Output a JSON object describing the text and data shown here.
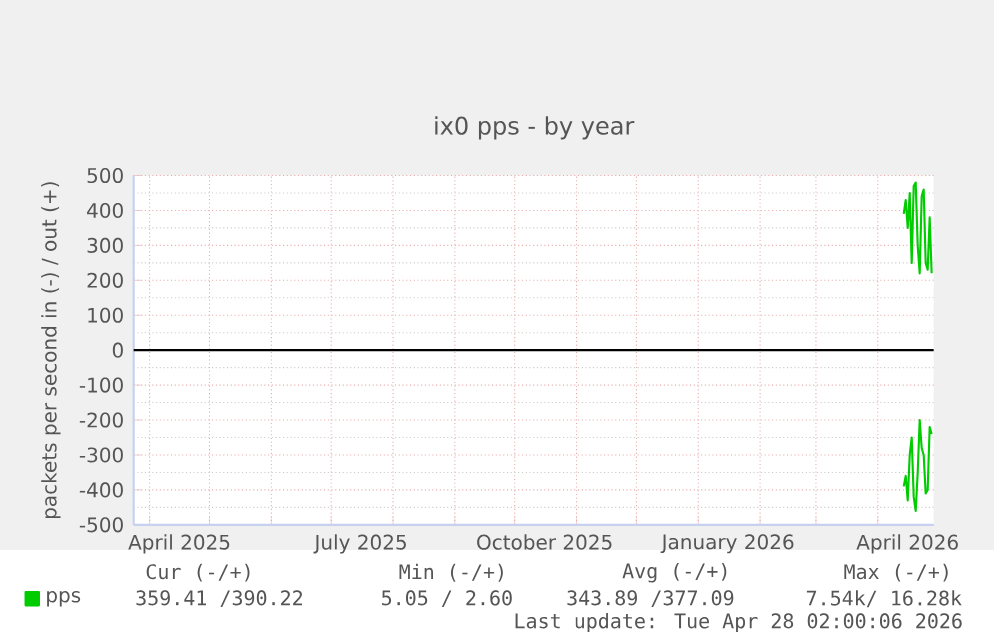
{
  "chart_data": {
    "type": "line",
    "title": "ix0 pps - by year",
    "ylabel": "packets per second in (-) / out (+)",
    "x": [
      "2026-04-14",
      "2026-04-15",
      "2026-04-16",
      "2026-04-17",
      "2026-04-18",
      "2026-04-19",
      "2026-04-20",
      "2026-04-21",
      "2026-04-22",
      "2026-04-23",
      "2026-04-24",
      "2026-04-25",
      "2026-04-26",
      "2026-04-27",
      "2026-04-28"
    ],
    "series": [
      {
        "name": "pps",
        "color": "#00cc00",
        "values": [
          390,
          430,
          350,
          450,
          250,
          470,
          480,
          300,
          220,
          440,
          460,
          250,
          230,
          380,
          220
        ]
      },
      {
        "color": "#00cc00",
        "values": [
          -390,
          -360,
          -430,
          -300,
          -250,
          -420,
          -460,
          -350,
          -200,
          -280,
          -300,
          -410,
          -400,
          -220,
          -240
        ]
      }
    ],
    "xlim": [
      "2025-03-24",
      "2026-04-29"
    ],
    "xticks": [
      {
        "value": "2025-04-01",
        "label": null
      },
      {
        "value": "2025-04-16",
        "label": "April 2025"
      },
      {
        "value": "2025-05-01",
        "label": null
      },
      {
        "value": "2025-06-01",
        "label": null
      },
      {
        "value": "2025-07-01",
        "label": null
      },
      {
        "value": "2025-07-16",
        "label": "July 2025"
      },
      {
        "value": "2025-08-01",
        "label": null
      },
      {
        "value": "2025-09-01",
        "label": null
      },
      {
        "value": "2025-10-01",
        "label": null
      },
      {
        "value": "2025-10-16",
        "label": "October 2025"
      },
      {
        "value": "2025-11-01",
        "label": null
      },
      {
        "value": "2025-12-01",
        "label": null
      },
      {
        "value": "2026-01-01",
        "label": null
      },
      {
        "value": "2026-01-16",
        "label": "January 2026"
      },
      {
        "value": "2026-02-01",
        "label": null
      },
      {
        "value": "2026-03-01",
        "label": null
      },
      {
        "value": "2026-04-01",
        "label": null
      },
      {
        "value": "2026-04-16",
        "label": "April 2026"
      }
    ],
    "ylim": [
      -500,
      500
    ],
    "yticks": [
      -500,
      -400,
      -300,
      -200,
      -100,
      0,
      100,
      200,
      300,
      400,
      500
    ],
    "ref_lines": [
      {
        "axis": "y",
        "value": 0,
        "color": "#000000"
      }
    ],
    "grid": true,
    "legend": "bottom left",
    "marker": "none",
    "line_style": "solid",
    "annotations": [
      "Cur (-/+)",
      "Min (-/+)",
      "Avg (-/+)",
      "Max (-/+)",
      "359.41 /390.22",
      "5.05 /   2.60",
      "343.89 /377.09",
      "7.54k/ 16.28k",
      "Last update: Tue Apr 28 02:00:06 2026"
    ]
  }
}
